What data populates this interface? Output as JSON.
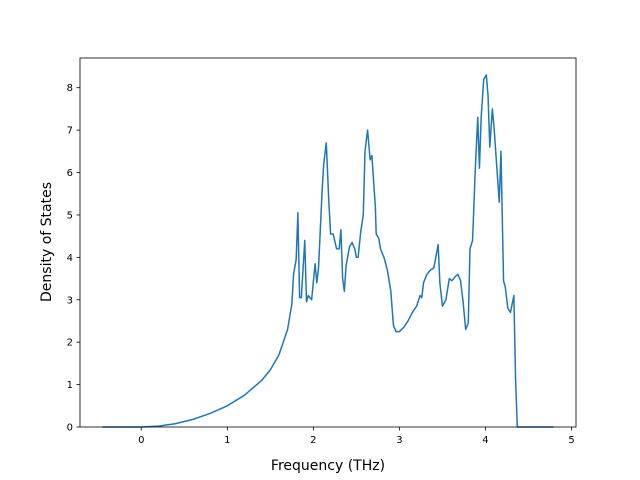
{
  "chart_data": {
    "type": "line",
    "x_label": "Frequency (THz)",
    "y_label": "Density of States",
    "xlim": [
      -0.712,
      5.052
    ],
    "ylim": [
      0,
      8.7
    ],
    "xticks": [
      0,
      1,
      2,
      3,
      4,
      5
    ],
    "yticks": [
      0,
      1,
      2,
      3,
      4,
      5,
      6,
      7,
      8
    ],
    "series": [
      {
        "color": "#1f77b4",
        "x": [
          -0.45,
          0,
          0.2,
          0.4,
          0.6,
          0.8,
          1.0,
          1.2,
          1.4,
          1.5,
          1.6,
          1.7,
          1.75,
          1.77,
          1.8,
          1.82,
          1.84,
          1.86,
          1.9,
          1.92,
          1.94,
          1.98,
          2.02,
          2.04,
          2.06,
          2.1,
          2.12,
          2.15,
          2.18,
          2.2,
          2.23,
          2.27,
          2.3,
          2.32,
          2.34,
          2.36,
          2.38,
          2.42,
          2.45,
          2.48,
          2.5,
          2.52,
          2.55,
          2.58,
          2.6,
          2.63,
          2.66,
          2.68,
          2.72,
          2.73,
          2.76,
          2.78,
          2.82,
          2.86,
          2.9,
          2.93,
          2.96,
          3.0,
          3.05,
          3.1,
          3.15,
          3.2,
          3.24,
          3.26,
          3.28,
          3.32,
          3.36,
          3.4,
          3.45,
          3.47,
          3.5,
          3.54,
          3.58,
          3.61,
          3.65,
          3.68,
          3.71,
          3.74,
          3.77,
          3.8,
          3.82,
          3.85,
          3.88,
          3.91,
          3.93,
          3.95,
          3.98,
          4.01,
          4.03,
          4.05,
          4.08,
          4.1,
          4.16,
          4.18,
          4.21,
          4.23,
          4.26,
          4.29,
          4.33,
          4.35,
          4.37,
          4.79
        ],
        "values": [
          0,
          0,
          0.02,
          0.08,
          0.18,
          0.32,
          0.5,
          0.75,
          1.1,
          1.35,
          1.7,
          2.3,
          2.9,
          3.6,
          3.95,
          5.05,
          3.05,
          3.05,
          4.4,
          2.95,
          3.1,
          3.0,
          3.85,
          3.4,
          3.75,
          5.5,
          6.2,
          6.7,
          5.3,
          4.55,
          4.55,
          4.2,
          4.2,
          4.65,
          3.5,
          3.2,
          3.8,
          4.25,
          4.35,
          4.2,
          4.0,
          4.0,
          4.6,
          5.0,
          6.5,
          7.0,
          6.3,
          6.4,
          5.2,
          4.55,
          4.45,
          4.2,
          4.0,
          3.7,
          3.2,
          2.4,
          2.25,
          2.25,
          2.35,
          2.5,
          2.7,
          2.85,
          3.1,
          3.05,
          3.4,
          3.6,
          3.7,
          3.75,
          4.3,
          3.4,
          2.85,
          3.0,
          3.5,
          3.45,
          3.55,
          3.6,
          3.45,
          2.95,
          2.3,
          2.45,
          4.2,
          4.4,
          6.0,
          7.3,
          6.1,
          7.3,
          8.2,
          8.3,
          7.8,
          6.6,
          7.5,
          7.05,
          5.3,
          6.5,
          3.45,
          3.3,
          2.8,
          2.7,
          3.1,
          1.1,
          0,
          0
        ]
      }
    ]
  }
}
